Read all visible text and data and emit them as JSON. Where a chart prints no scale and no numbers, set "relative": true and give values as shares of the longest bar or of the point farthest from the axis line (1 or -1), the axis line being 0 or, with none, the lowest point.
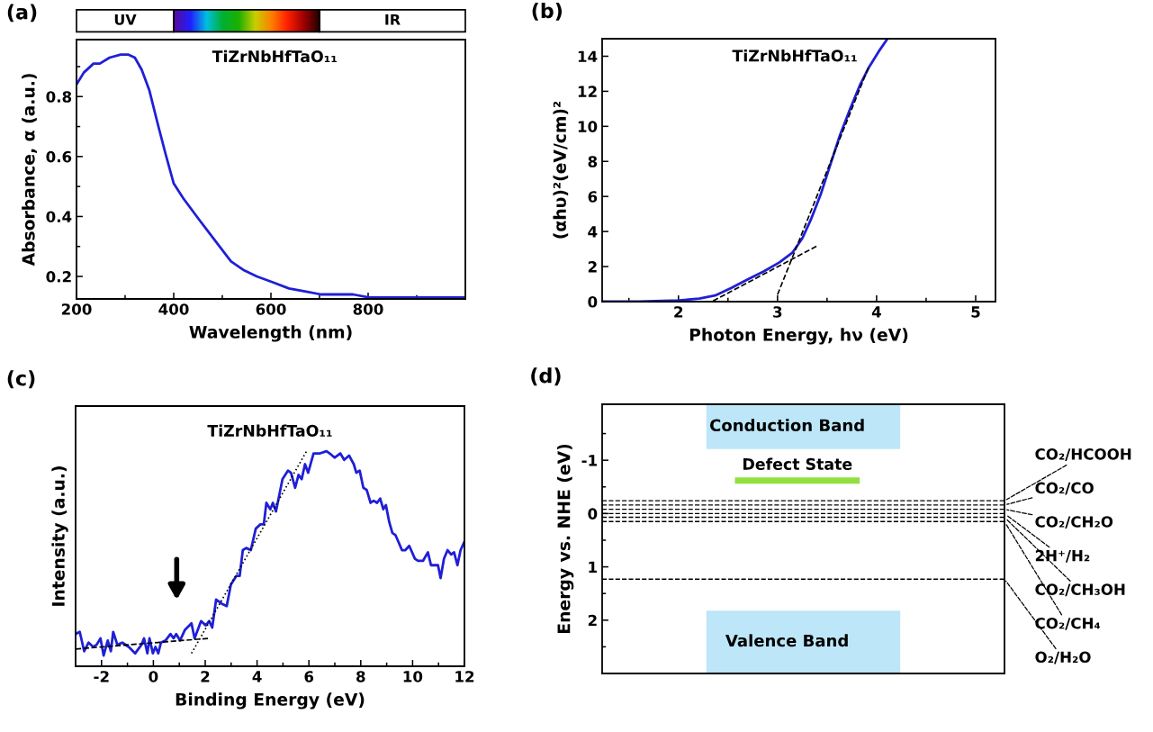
{
  "chart_data": [
    {
      "type": "line",
      "title": "TiZrNbHfTaO₁₁",
      "xlabel": "Wavelength (nm)",
      "ylabel": "Absorbance, α (a.u.)",
      "annotations": [
        "(a)",
        "UV",
        "IR"
      ],
      "series": [
        {
          "color": "#1f1fd6",
          "line_style": "solid",
          "x": [
            200,
            215,
            235,
            248,
            268,
            291,
            307,
            320,
            334,
            350,
            367,
            383,
            400,
            420,
            452,
            485,
            518,
            545,
            571,
            605,
            637,
            670,
            703,
            736,
            769,
            802,
            835,
            901,
            996
          ],
          "values": [
            0.84,
            0.88,
            0.91,
            0.91,
            0.93,
            0.94,
            0.94,
            0.93,
            0.89,
            0.82,
            0.71,
            0.61,
            0.51,
            0.46,
            0.39,
            0.32,
            0.25,
            0.22,
            0.2,
            0.18,
            0.16,
            0.15,
            0.14,
            0.14,
            0.14,
            0.13,
            0.13,
            0.13,
            0.13
          ]
        }
      ],
      "xlim": [
        200,
        1000
      ],
      "xticks": [
        200,
        400,
        600,
        800,
        {
          "value": 300,
          "label": null
        },
        {
          "value": 500,
          "label": null
        },
        {
          "value": 700,
          "label": null
        },
        {
          "value": 900,
          "label": null
        }
      ],
      "ylim": [
        0.125,
        0.99
      ],
      "yticks": [
        0.2,
        0.4,
        0.6,
        0.8,
        {
          "value": 0.3,
          "label": null
        },
        {
          "value": 0.5,
          "label": null
        },
        {
          "value": 0.7,
          "label": null
        },
        {
          "value": 0.9,
          "label": null
        }
      ]
    },
    {
      "type": "line",
      "title": "TiZrNbHfTaO₁₁",
      "xlabel": "Photon Energy, hν (eV)",
      "ylabel": "(αhυ)²(eV/cm)²",
      "annotations": [
        "(b)"
      ],
      "series": [
        {
          "color": "#1f1fd6",
          "line_style": "solid",
          "x": [
            1.23,
            1.6,
            2.0,
            2.21,
            2.37,
            2.53,
            2.7,
            2.86,
            3.02,
            3.15,
            3.25,
            3.34,
            3.44,
            3.54,
            3.63,
            3.73,
            3.83,
            3.92,
            4.02,
            4.11
          ],
          "values": [
            0,
            0,
            0.07,
            0.17,
            0.35,
            0.77,
            1.27,
            1.72,
            2.24,
            2.79,
            3.61,
            4.72,
            6.18,
            7.93,
            9.49,
            10.95,
            12.33,
            13.34,
            14.26,
            15.0
          ]
        },
        {
          "color": "#000000",
          "line_style": "dashed",
          "x": [
            3.0,
            3.92
          ],
          "values": [
            0.4,
            13.4
          ]
        },
        {
          "color": "#000000",
          "line_style": "dashed",
          "x": [
            2.35,
            3.41
          ],
          "values": [
            0.04,
            3.21
          ]
        }
      ],
      "xlim": [
        1.23,
        5.2
      ],
      "xticks": [
        2,
        3,
        4,
        5,
        {
          "value": 1.5,
          "label": null
        },
        {
          "value": 2.5,
          "label": null
        },
        {
          "value": 3.5,
          "label": null
        },
        {
          "value": 4.5,
          "label": null
        }
      ],
      "ylim": [
        0,
        15
      ],
      "yticks": [
        0,
        2,
        4,
        6,
        8,
        10,
        12,
        14
      ]
    },
    {
      "type": "line",
      "relative": true,
      "title": "TiZrNbHfTaO₁₁",
      "xlabel": "Binding Energy (eV)",
      "ylabel": "Intensity (a.u.)",
      "annotations": [
        "(c)"
      ],
      "series": [
        {
          "color": "#1f1fd6",
          "line_style": "solid",
          "x": [
            -3.0,
            -2.84,
            -2.67,
            -2.5,
            -2.32,
            -2.19,
            -2.04,
            -1.92,
            -1.76,
            -1.64,
            -1.55,
            -1.39,
            -1.2,
            -0.95,
            -0.7,
            -0.46,
            -0.36,
            -0.23,
            -0.15,
            -0.02,
            0.08,
            0.19,
            0.29,
            0.47,
            0.66,
            0.78,
            0.88,
            1.03,
            1.22,
            1.47,
            1.59,
            1.84,
            2.02,
            2.15,
            2.27,
            2.42,
            2.65,
            2.83,
            2.99,
            3.2,
            3.33,
            3.45,
            3.58,
            3.76,
            3.95,
            4.13,
            4.26,
            4.36,
            4.51,
            4.61,
            4.73,
            4.98,
            5.19,
            5.31,
            5.47,
            5.6,
            5.72,
            5.85,
            5.97,
            6.18,
            6.43,
            6.68,
            6.8,
            6.99,
            7.21,
            7.36,
            7.55,
            7.73,
            7.83,
            7.96,
            8.1,
            8.23,
            8.38,
            8.5,
            8.63,
            8.75,
            8.87,
            8.97,
            9.1,
            9.22,
            9.34,
            9.59,
            9.72,
            9.87,
            10.09,
            10.21,
            10.4,
            10.59,
            10.71,
            10.9,
            10.98,
            11.08,
            11.21,
            11.35,
            11.49,
            11.6,
            11.73,
            11.85,
            12.0
          ],
          "values": [
            0.15,
            0.16,
            0.07,
            0.11,
            0.09,
            0.1,
            0.13,
            0.05,
            0.12,
            0.07,
            0.16,
            0.1,
            0.11,
            0.09,
            0.06,
            0.1,
            0.13,
            0.06,
            0.13,
            0.06,
            0.09,
            0.06,
            0.11,
            0.12,
            0.15,
            0.13,
            0.15,
            0.12,
            0.17,
            0.2,
            0.13,
            0.21,
            0.19,
            0.21,
            0.18,
            0.31,
            0.29,
            0.28,
            0.38,
            0.42,
            0.42,
            0.54,
            0.55,
            0.54,
            0.64,
            0.66,
            0.66,
            0.76,
            0.73,
            0.76,
            0.72,
            0.87,
            0.91,
            0.9,
            0.83,
            0.89,
            0.87,
            0.94,
            0.9,
            0.99,
            0.99,
            1.0,
            0.99,
            0.97,
            0.99,
            0.96,
            0.98,
            0.94,
            0.9,
            0.91,
            0.83,
            0.82,
            0.76,
            0.77,
            0.76,
            0.78,
            0.73,
            0.75,
            0.67,
            0.62,
            0.61,
            0.54,
            0.54,
            0.56,
            0.5,
            0.49,
            0.49,
            0.53,
            0.47,
            0.47,
            0.47,
            0.41,
            0.5,
            0.54,
            0.52,
            0.53,
            0.47,
            0.54,
            0.58
          ]
        },
        {
          "color": "#000000",
          "line_style": "dotted",
          "x": [
            1.47,
            5.91
          ],
          "values": [
            0.06,
            1.0
          ]
        },
        {
          "color": "#000000",
          "line_style": "dashed",
          "x": [
            -3.0,
            2.15
          ],
          "values": [
            0.08,
            0.13
          ]
        }
      ],
      "xlim": [
        -3,
        12
      ],
      "xticks": [
        -2,
        0,
        2,
        4,
        6,
        8,
        10,
        12,
        {
          "value": -1,
          "label": null
        },
        {
          "value": 1,
          "label": null
        },
        {
          "value": 3,
          "label": null
        },
        {
          "value": 5,
          "label": null
        },
        {
          "value": 7,
          "label": null
        },
        {
          "value": 9,
          "label": null
        },
        {
          "value": 11,
          "label": null
        }
      ]
    },
    {
      "type": "bar",
      "categories": [
        null
      ],
      "ylabel": "Energy vs. NHE (eV)",
      "annotations": [
        "(d)"
      ],
      "series": [
        {
          "name": "Conduction Band",
          "color": "#bde6f8",
          "base": [
            -2.05
          ],
          "values": [
            0.84
          ]
        },
        {
          "name": "Valence Band",
          "color": "#bde6f8",
          "base": [
            1.82
          ],
          "values": [
            1.18
          ]
        }
      ],
      "ylim": [
        3.0,
        -2.05
      ],
      "yticks": [
        -1,
        0,
        1,
        2,
        {
          "value": -1.5,
          "label": null
        },
        {
          "value": -0.5,
          "label": null
        },
        {
          "value": 0.5,
          "label": null
        },
        {
          "value": 1.5,
          "label": null
        },
        {
          "value": 2.5,
          "label": null
        }
      ],
      "ref_lines": [
        {
          "axis": "y",
          "value": -0.62,
          "label": "Defect State",
          "color": "#90e040",
          "line_style": "solid"
        },
        {
          "axis": "y",
          "value": -0.24,
          "label": "CO₂/HCOOH",
          "color": "#000000",
          "line_style": "dashed"
        },
        {
          "axis": "y",
          "value": -0.16,
          "label": "CO₂/CO",
          "color": "#000000",
          "line_style": "dashed"
        },
        {
          "axis": "y",
          "value": -0.08,
          "label": "CO₂/CH₂O",
          "color": "#000000",
          "line_style": "dashed"
        },
        {
          "axis": "y",
          "value": 0.0,
          "label": "2H⁺/H₂",
          "color": "#000000",
          "line_style": "dashed"
        },
        {
          "axis": "y",
          "value": 0.07,
          "label": "CO₂/CH₃OH",
          "color": "#000000",
          "line_style": "dashed"
        },
        {
          "axis": "y",
          "value": 0.15,
          "label": "CO₂/CH₄",
          "color": "#000000",
          "line_style": "dashed"
        },
        {
          "axis": "y",
          "value": 1.23,
          "label": "O₂/H₂O",
          "color": "#000000",
          "line_style": "dashed"
        }
      ]
    }
  ]
}
